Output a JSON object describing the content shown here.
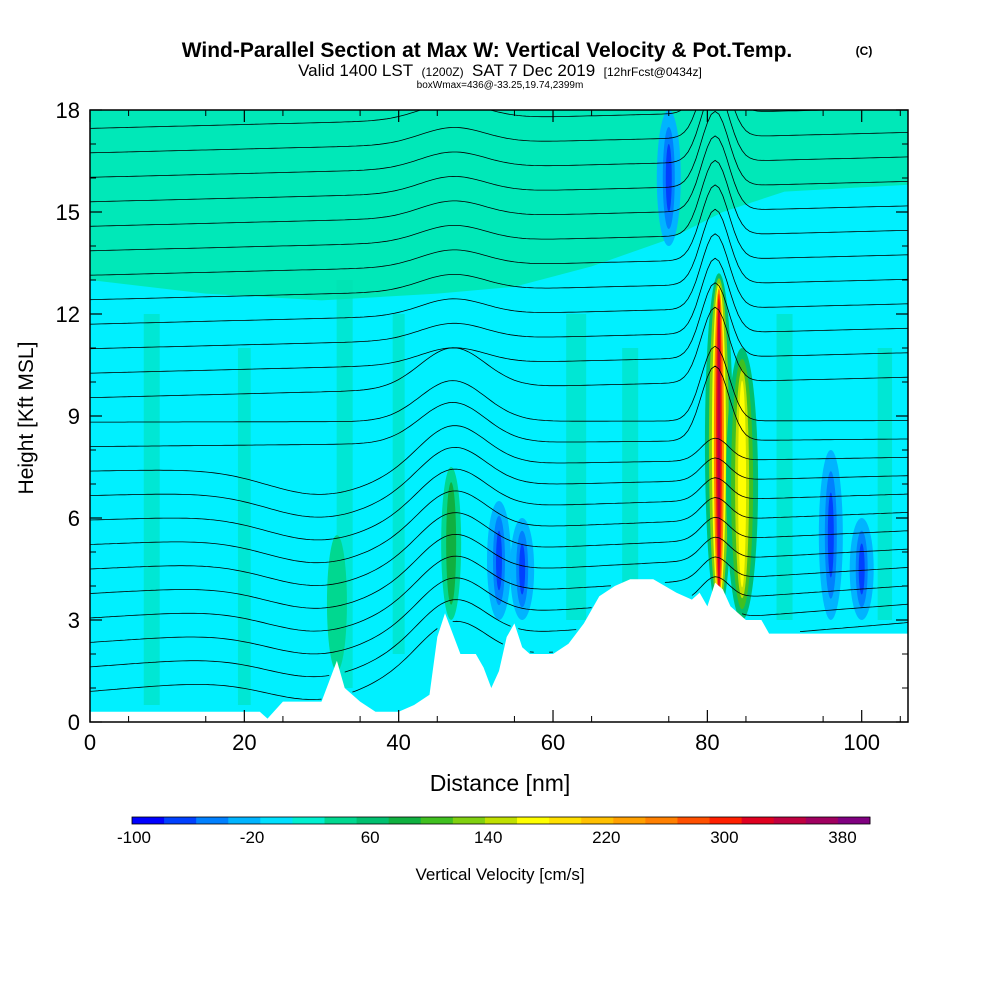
{
  "chart_data": {
    "type": "contour-cross-section",
    "title": "Wind-Parallel Section at Max W: Vertical Velocity & Pot.Temp.",
    "copyright": "(C)",
    "subtitle": {
      "valid": "Valid 1400 LST",
      "utc": "(1200Z)",
      "date": "SAT 7 Dec 2019",
      "forecast": "[12hrFcst@0434z]"
    },
    "box_info": "boxWmax=436@-33.25,19.74,2399m",
    "xlabel": "Distance [nm]",
    "ylabel": "Height [Kft MSL]",
    "xlim": [
      0,
      106
    ],
    "ylim": [
      0,
      18
    ],
    "x_ticks": [
      0,
      20,
      40,
      60,
      80,
      100
    ],
    "y_ticks": [
      0,
      3,
      6,
      9,
      12,
      15,
      18
    ],
    "colorbar": {
      "label": "Vertical Velocity [cm/s]",
      "tick_labels": [
        "-100",
        "-20",
        "60",
        "140",
        "220",
        "300",
        "380"
      ],
      "tick_values": [
        -100,
        -20,
        60,
        140,
        220,
        300,
        380
      ],
      "colors": [
        "#0000ff",
        "#0040ff",
        "#0080ff",
        "#00b4ff",
        "#00e0ff",
        "#00f0d0",
        "#00d890",
        "#00c070",
        "#10b040",
        "#40c020",
        "#80d010",
        "#c0e000",
        "#ffff00",
        "#ffe000",
        "#ffc000",
        "#ffa000",
        "#ff8000",
        "#ff5000",
        "#ff2000",
        "#e00020",
        "#c00040",
        "#a00060",
        "#800080"
      ]
    },
    "terrain": [
      [
        0,
        0.3
      ],
      [
        8,
        0.3
      ],
      [
        10,
        0.3
      ],
      [
        20,
        0.3
      ],
      [
        22,
        0.3
      ],
      [
        23,
        0.1
      ],
      [
        25,
        0.6
      ],
      [
        30,
        0.6
      ],
      [
        31,
        1.2
      ],
      [
        32,
        1.8
      ],
      [
        33,
        1.0
      ],
      [
        35,
        0.6
      ],
      [
        37,
        0.3
      ],
      [
        40,
        0.3
      ],
      [
        42,
        0.5
      ],
      [
        44,
        0.8
      ],
      [
        45,
        2.5
      ],
      [
        46,
        3.2
      ],
      [
        47,
        2.6
      ],
      [
        48,
        2.0
      ],
      [
        50,
        2.0
      ],
      [
        51,
        1.6
      ],
      [
        52,
        1.0
      ],
      [
        53,
        1.5
      ],
      [
        54,
        2.5
      ],
      [
        55,
        2.9
      ],
      [
        56,
        2.2
      ],
      [
        57,
        2.0
      ],
      [
        60,
        2.0
      ],
      [
        62,
        2.3
      ],
      [
        64,
        2.9
      ],
      [
        66,
        3.7
      ],
      [
        68,
        4.0
      ],
      [
        70,
        4.2
      ],
      [
        73,
        4.2
      ],
      [
        76,
        3.8
      ],
      [
        78,
        3.6
      ],
      [
        79,
        3.8
      ],
      [
        80,
        3.4
      ],
      [
        81,
        4.1
      ],
      [
        82,
        3.9
      ],
      [
        83,
        3.4
      ],
      [
        85,
        3.0
      ],
      [
        87,
        3.0
      ],
      [
        88,
        2.6
      ],
      [
        106,
        2.6
      ]
    ],
    "velocity_features": [
      {
        "x": 81.5,
        "zmin": 3.2,
        "zmax": 13.2,
        "w_max": 436,
        "label": "main updraft"
      },
      {
        "x": 84.5,
        "zmin": 3.0,
        "zmax": 11.0,
        "w_max": 160,
        "label": "secondary updraft"
      },
      {
        "x": 46.8,
        "zmin": 3.0,
        "zmax": 7.5,
        "w_max": 70,
        "label": "lee updraft"
      },
      {
        "x": 32.0,
        "zmin": 1.5,
        "zmax": 5.5,
        "w_max": 40,
        "label": "small updraft"
      },
      {
        "x": 56.0,
        "zmin": 3.0,
        "zmax": 6.0,
        "w_max": -80,
        "label": "downdraft"
      },
      {
        "x": 53.0,
        "zmin": 3.0,
        "zmax": 6.5,
        "w_max": -70,
        "label": "downdraft"
      },
      {
        "x": 75.0,
        "zmin": 14.0,
        "zmax": 18.0,
        "w_max": -70,
        "label": "upper downdraft"
      },
      {
        "x": 96.0,
        "zmin": 3.0,
        "zmax": 8.0,
        "w_max": -80,
        "label": "downdraft"
      },
      {
        "x": 100.0,
        "zmin": 3.0,
        "zmax": 6.0,
        "w_max": -80,
        "label": "downdraft"
      }
    ]
  }
}
